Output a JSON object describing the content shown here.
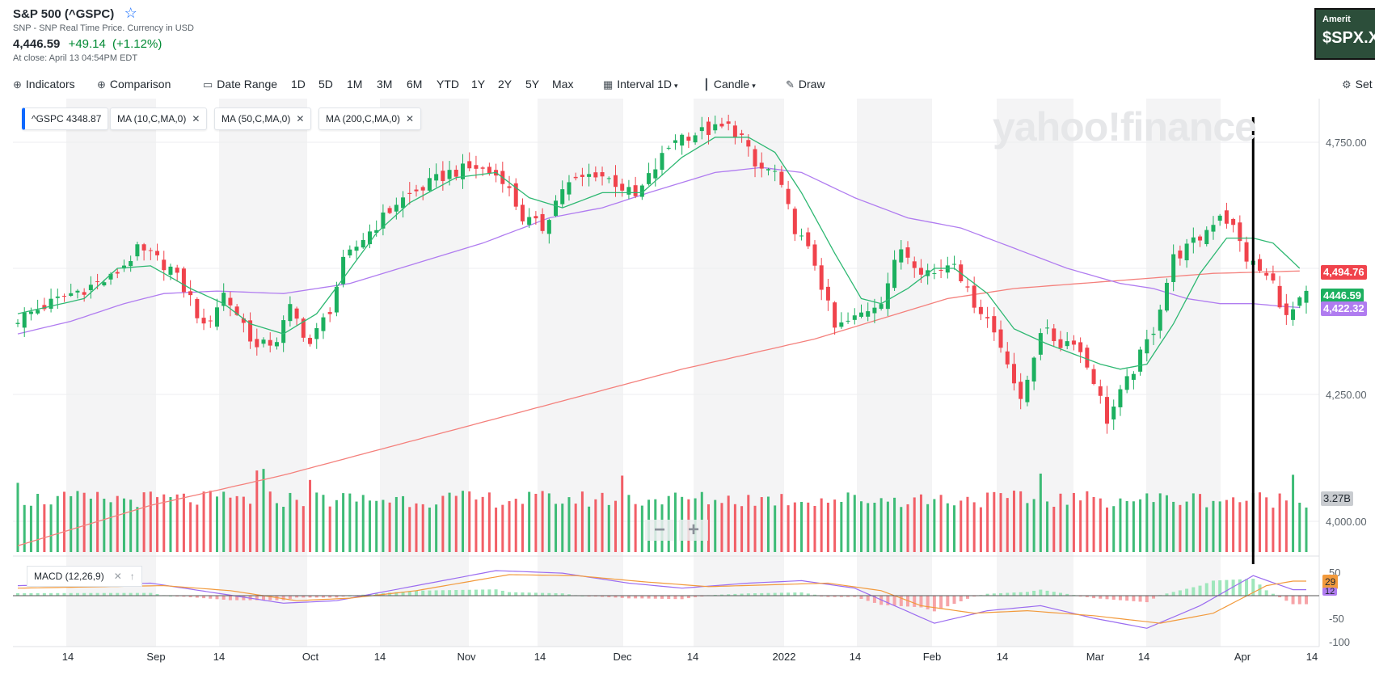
{
  "header": {
    "title": "S&P 500 (^GSPC)",
    "subtitle": "SNP - SNP Real Time Price. Currency in USD",
    "price": "4,446.59",
    "change": "+49.14",
    "change_pct": "(+1.12%)",
    "close_info": "At close: April 13 04:54PM EDT",
    "star_icon": "star-outline-icon"
  },
  "ad": {
    "brand": "Amerit",
    "ticker": "$SPX.X"
  },
  "toolbar": {
    "indicators": "Indicators",
    "comparison": "Comparison",
    "date_range": "Date Range",
    "ranges": [
      "1D",
      "5D",
      "1M",
      "3M",
      "6M",
      "YTD",
      "1Y",
      "2Y",
      "5Y",
      "Max"
    ],
    "interval_label": "Interval",
    "interval_value": "1D",
    "chart_type": "Candle",
    "draw": "Draw",
    "settings": "Set"
  },
  "legend": {
    "ticker": "^GSPC",
    "ticker_value": "4348.87",
    "ma10": "MA (10,C,MA,0)",
    "ma50": "MA (50,C,MA,0)",
    "ma200": "MA (200,C,MA,0)"
  },
  "watermark": "yahoo!finance",
  "macd_label": "MACD (12,26,9)",
  "right_labels": {
    "ma200": "4,494.76",
    "close": "4446.59",
    "ma50": "4,422.32",
    "volume": "3.27B",
    "macd_signal": "29",
    "macd_line": "12"
  },
  "colors": {
    "up": "#1cb05f",
    "down": "#f0434c",
    "ma10": "#2eb872",
    "ma50": "#b07cf0",
    "ma200": "#f4807c",
    "accent": "#0f69ff"
  },
  "chart_data": {
    "type": "candlestick",
    "x_tick_labels": [
      "14",
      "Sep",
      "14",
      "Oct",
      "14",
      "Nov",
      "14",
      "Dec",
      "14",
      "2022",
      "14",
      "Feb",
      "14",
      "Mar",
      "14",
      "Apr",
      "14"
    ],
    "y_tick_labels": [
      "4,750.00",
      "4,250.00",
      "4,000.00"
    ],
    "ylim": [
      3950,
      4830
    ],
    "macd_tick_labels": [
      "50",
      "-50",
      "-100"
    ],
    "macd_ylim": [
      -100,
      55
    ],
    "anchors": [
      [
        0,
        4400
      ],
      [
        8,
        4450
      ],
      [
        14,
        4480
      ],
      [
        18,
        4535
      ],
      [
        20,
        4525
      ],
      [
        23,
        4500
      ],
      [
        26,
        4440
      ],
      [
        28,
        4380
      ],
      [
        31,
        4450
      ],
      [
        34,
        4390
      ],
      [
        36,
        4340
      ],
      [
        39,
        4360
      ],
      [
        41,
        4420
      ],
      [
        44,
        4350
      ],
      [
        47,
        4420
      ],
      [
        49,
        4510
      ],
      [
        52,
        4560
      ],
      [
        55,
        4600
      ],
      [
        57,
        4630
      ],
      [
        61,
        4660
      ],
      [
        65,
        4690
      ],
      [
        69,
        4700
      ],
      [
        73,
        4680
      ],
      [
        76,
        4600
      ],
      [
        79,
        4580
      ],
      [
        82,
        4660
      ],
      [
        87,
        4690
      ],
      [
        90,
        4670
      ],
      [
        93,
        4640
      ],
      [
        96,
        4700
      ],
      [
        99,
        4760
      ],
      [
        103,
        4770
      ],
      [
        107,
        4780
      ],
      [
        109,
        4760
      ],
      [
        111,
        4700
      ],
      [
        114,
        4690
      ],
      [
        117,
        4580
      ],
      [
        120,
        4510
      ],
      [
        123,
        4380
      ],
      [
        126,
        4400
      ],
      [
        130,
        4440
      ],
      [
        133,
        4540
      ],
      [
        136,
        4500
      ],
      [
        138,
        4490
      ],
      [
        141,
        4520
      ],
      [
        143,
        4450
      ],
      [
        146,
        4400
      ],
      [
        149,
        4320
      ],
      [
        151,
        4230
      ],
      [
        154,
        4380
      ],
      [
        157,
        4350
      ],
      [
        159,
        4360
      ],
      [
        162,
        4280
      ],
      [
        164,
        4200
      ],
      [
        168,
        4300
      ],
      [
        171,
        4380
      ],
      [
        174,
        4520
      ],
      [
        178,
        4560
      ],
      [
        181,
        4610
      ],
      [
        183,
        4580
      ],
      [
        185,
        4520
      ],
      [
        189,
        4470
      ],
      [
        191,
        4400
      ],
      [
        194,
        4446.59
      ]
    ],
    "ma10_anchors": [
      [
        0,
        4410
      ],
      [
        10,
        4440
      ],
      [
        15,
        4500
      ],
      [
        20,
        4505
      ],
      [
        26,
        4460
      ],
      [
        31,
        4430
      ],
      [
        35,
        4390
      ],
      [
        40,
        4370
      ],
      [
        45,
        4410
      ],
      [
        49,
        4480
      ],
      [
        54,
        4570
      ],
      [
        59,
        4630
      ],
      [
        66,
        4680
      ],
      [
        72,
        4690
      ],
      [
        77,
        4640
      ],
      [
        82,
        4620
      ],
      [
        88,
        4650
      ],
      [
        94,
        4650
      ],
      [
        100,
        4720
      ],
      [
        105,
        4760
      ],
      [
        110,
        4760
      ],
      [
        114,
        4730
      ],
      [
        118,
        4650
      ],
      [
        123,
        4530
      ],
      [
        127,
        4440
      ],
      [
        130,
        4430
      ],
      [
        134,
        4460
      ],
      [
        138,
        4500
      ],
      [
        141,
        4500
      ],
      [
        146,
        4450
      ],
      [
        150,
        4380
      ],
      [
        155,
        4350
      ],
      [
        159,
        4330
      ],
      [
        163,
        4310
      ],
      [
        166,
        4300
      ],
      [
        170,
        4310
      ],
      [
        174,
        4390
      ],
      [
        178,
        4490
      ],
      [
        182,
        4560
      ],
      [
        186,
        4560
      ],
      [
        189,
        4550
      ],
      [
        193,
        4500
      ]
    ],
    "ma50_anchors": [
      [
        0,
        4370
      ],
      [
        8,
        4395
      ],
      [
        16,
        4430
      ],
      [
        22,
        4450
      ],
      [
        30,
        4455
      ],
      [
        40,
        4450
      ],
      [
        50,
        4470
      ],
      [
        60,
        4510
      ],
      [
        70,
        4550
      ],
      [
        80,
        4600
      ],
      [
        88,
        4620
      ],
      [
        95,
        4650
      ],
      [
        100,
        4670
      ],
      [
        105,
        4690
      ],
      [
        112,
        4700
      ],
      [
        118,
        4690
      ],
      [
        126,
        4640
      ],
      [
        134,
        4600
      ],
      [
        142,
        4580
      ],
      [
        150,
        4540
      ],
      [
        158,
        4500
      ],
      [
        166,
        4470
      ],
      [
        171,
        4460
      ],
      [
        176,
        4440
      ],
      [
        181,
        4430
      ],
      [
        186,
        4430
      ],
      [
        190,
        4425
      ],
      [
        193,
        4422.32
      ]
    ],
    "ma200_anchors": [
      [
        0,
        3950
      ],
      [
        20,
        4030
      ],
      [
        40,
        4090
      ],
      [
        60,
        4160
      ],
      [
        80,
        4230
      ],
      [
        100,
        4300
      ],
      [
        120,
        4360
      ],
      [
        130,
        4400
      ],
      [
        140,
        4440
      ],
      [
        150,
        4460
      ],
      [
        160,
        4470
      ],
      [
        170,
        4480
      ],
      [
        180,
        4490
      ],
      [
        193,
        4494.76
      ]
    ],
    "volume_max": 4.5,
    "volume_last": 3.27,
    "vertical_marker_index": 186
  }
}
